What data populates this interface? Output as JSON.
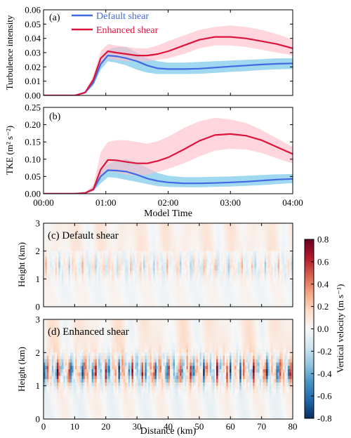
{
  "chart_data": [
    {
      "type": "line",
      "panel_label": "(a)",
      "ylabel": "Turbulence intensity",
      "xlabel": "",
      "x_ticks": [
        "00:00",
        "01:00",
        "02:00",
        "03:00",
        "04:00"
      ],
      "xlim": [
        0,
        240
      ],
      "ylim": [
        0,
        0.06
      ],
      "y_ticks": [
        "0.00",
        "0.01",
        "0.02",
        "0.03",
        "0.04",
        "0.05",
        "0.06"
      ],
      "legend_position": "top-left",
      "series": [
        {
          "name": "Default shear",
          "color": "#4169E1",
          "band_color": "#87CEEB",
          "x": [
            0,
            30,
            40,
            48,
            55,
            62,
            70,
            80,
            90,
            100,
            110,
            120,
            135,
            150,
            165,
            180,
            195,
            210,
            225,
            240
          ],
          "values": [
            0,
            0,
            0.002,
            0.009,
            0.022,
            0.028,
            0.0275,
            0.026,
            0.024,
            0.021,
            0.019,
            0.0185,
            0.0185,
            0.0188,
            0.0195,
            0.0203,
            0.021,
            0.0217,
            0.0222,
            0.0225
          ],
          "band_upper": [
            0,
            0,
            0.003,
            0.012,
            0.027,
            0.032,
            0.034,
            0.034,
            0.03,
            0.026,
            0.024,
            0.023,
            0.023,
            0.0235,
            0.024,
            0.0245,
            0.025,
            0.0255,
            0.026,
            0.026
          ],
          "band_lower": [
            0,
            0,
            0.0015,
            0.007,
            0.018,
            0.024,
            0.023,
            0.021,
            0.018,
            0.016,
            0.015,
            0.015,
            0.015,
            0.0152,
            0.0158,
            0.0165,
            0.017,
            0.0178,
            0.0183,
            0.0186
          ]
        },
        {
          "name": "Enhanced shear",
          "color": "#DC143C",
          "band_color": "#FFC0CB",
          "x": [
            0,
            30,
            40,
            48,
            55,
            62,
            70,
            80,
            90,
            100,
            110,
            120,
            135,
            150,
            165,
            180,
            195,
            210,
            225,
            240
          ],
          "values": [
            0,
            0,
            0.002,
            0.011,
            0.026,
            0.031,
            0.03,
            0.029,
            0.028,
            0.028,
            0.029,
            0.031,
            0.035,
            0.039,
            0.041,
            0.041,
            0.04,
            0.038,
            0.036,
            0.033
          ],
          "band_upper": [
            0,
            0,
            0.003,
            0.014,
            0.031,
            0.036,
            0.035,
            0.034,
            0.033,
            0.033,
            0.035,
            0.038,
            0.042,
            0.046,
            0.048,
            0.049,
            0.048,
            0.046,
            0.043,
            0.039
          ],
          "band_lower": [
            0,
            0,
            0.0015,
            0.008,
            0.021,
            0.026,
            0.025,
            0.024,
            0.024,
            0.024,
            0.025,
            0.026,
            0.029,
            0.033,
            0.035,
            0.035,
            0.034,
            0.032,
            0.03,
            0.028
          ]
        }
      ]
    },
    {
      "type": "line",
      "panel_label": "(b)",
      "ylabel": "TKE (m² s⁻²)",
      "xlabel": "Model Time",
      "x_ticks": [
        "00:00",
        "01:00",
        "02:00",
        "03:00",
        "04:00"
      ],
      "xlim": [
        0,
        240
      ],
      "ylim": [
        0,
        0.25
      ],
      "y_ticks": [
        "0.00",
        "0.05",
        "0.10",
        "0.15",
        "0.20",
        "0.25"
      ],
      "series": [
        {
          "name": "Default shear",
          "color": "#4169E1",
          "band_color": "#87CEEB",
          "x": [
            0,
            30,
            40,
            48,
            55,
            62,
            70,
            80,
            90,
            100,
            110,
            120,
            135,
            150,
            165,
            180,
            195,
            210,
            225,
            240
          ],
          "values": [
            0,
            0,
            0.002,
            0.012,
            0.05,
            0.068,
            0.067,
            0.064,
            0.055,
            0.044,
            0.037,
            0.033,
            0.03,
            0.03,
            0.031,
            0.033,
            0.035,
            0.038,
            0.041,
            0.043
          ],
          "band_upper": [
            0,
            0,
            0.004,
            0.02,
            0.07,
            0.085,
            0.095,
            0.1,
            0.09,
            0.075,
            0.06,
            0.052,
            0.048,
            0.048,
            0.049,
            0.05,
            0.052,
            0.054,
            0.056,
            0.057
          ],
          "band_lower": [
            0,
            0,
            0.001,
            0.008,
            0.03,
            0.048,
            0.046,
            0.04,
            0.034,
            0.028,
            0.022,
            0.02,
            0.019,
            0.019,
            0.02,
            0.021,
            0.023,
            0.025,
            0.028,
            0.031
          ]
        },
        {
          "name": "Enhanced shear",
          "color": "#DC143C",
          "band_color": "#FFC0CB",
          "x": [
            0,
            30,
            40,
            48,
            55,
            62,
            70,
            80,
            90,
            100,
            110,
            120,
            135,
            150,
            165,
            180,
            195,
            210,
            225,
            240
          ],
          "values": [
            0,
            0,
            0.002,
            0.013,
            0.07,
            0.098,
            0.097,
            0.092,
            0.088,
            0.088,
            0.095,
            0.105,
            0.128,
            0.153,
            0.17,
            0.173,
            0.168,
            0.155,
            0.135,
            0.115
          ],
          "band_upper": [
            0,
            0,
            0.004,
            0.025,
            0.12,
            0.15,
            0.155,
            0.155,
            0.15,
            0.145,
            0.152,
            0.165,
            0.19,
            0.21,
            0.22,
            0.215,
            0.205,
            0.185,
            0.16,
            0.135
          ],
          "band_lower": [
            0,
            0,
            0.001,
            0.008,
            0.045,
            0.065,
            0.062,
            0.055,
            0.052,
            0.055,
            0.063,
            0.072,
            0.088,
            0.108,
            0.125,
            0.13,
            0.128,
            0.118,
            0.102,
            0.088
          ]
        }
      ]
    },
    {
      "type": "heatmap",
      "panel_label": "(c)",
      "title": "Default shear",
      "ylabel": "Height (km)",
      "xlabel": "",
      "xlim": [
        0,
        80
      ],
      "ylim": [
        0,
        3
      ],
      "y_ticks": [
        "0",
        "1",
        "2",
        "3"
      ],
      "x_ticks": [
        "0",
        "10",
        "20",
        "30",
        "40",
        "50",
        "60",
        "70",
        "80"
      ],
      "intensity": 0.35
    },
    {
      "type": "heatmap",
      "panel_label": "(d)",
      "title": "Enhanced shear",
      "ylabel": "Height (km)",
      "xlabel": "Distance (km)",
      "xlim": [
        0,
        80
      ],
      "ylim": [
        0,
        3
      ],
      "y_ticks": [
        "0",
        "1",
        "2",
        "3"
      ],
      "x_ticks": [
        "0",
        "10",
        "20",
        "30",
        "40",
        "50",
        "60",
        "70",
        "80"
      ],
      "intensity": 1.0
    }
  ],
  "colorbar": {
    "label": "Vertical velocity (m s⁻¹)",
    "ticks": [
      "0.8",
      "0.6",
      "0.4",
      "0.2",
      "0.0",
      "-0.2",
      "-0.4",
      "-0.6",
      "-0.8"
    ],
    "range": [
      -0.8,
      0.8
    ],
    "colors_high_to_low": [
      "#67001F",
      "#B2182B",
      "#D6604D",
      "#F4A582",
      "#FDDBC7",
      "#F7F7F7",
      "#D1E5F0",
      "#92C5DE",
      "#4393C3",
      "#2166AC",
      "#053061"
    ]
  }
}
